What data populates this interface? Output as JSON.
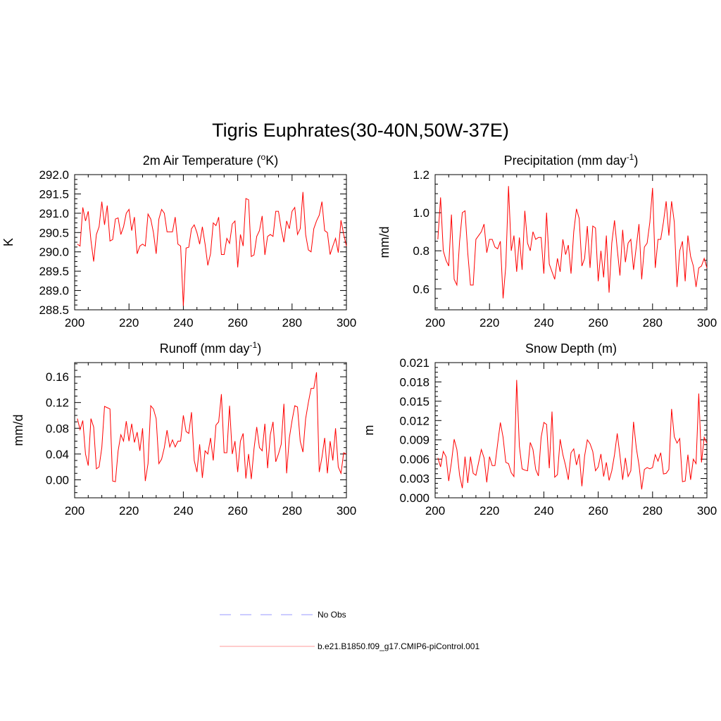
{
  "figure_title": "Tigris Euphrates(30-40N,50W-37E)",
  "legend": [
    {
      "label": "No Obs",
      "color": "#9999ff",
      "style": "dashed"
    },
    {
      "label": "b.e21.B1850.f09_g17.CMIP6-piControl.001",
      "color": "#ff9999",
      "style": "solid"
    }
  ],
  "colors": {
    "series": "#ff0000"
  },
  "chart_data": [
    {
      "id": "temp",
      "type": "line",
      "title": "2m Air Temperature (",
      "title_sup": "o",
      "title_after": "K)",
      "ylabel": "K",
      "xlim": [
        200,
        300
      ],
      "ylim": [
        288.5,
        292.0
      ],
      "xticks": [
        200,
        220,
        240,
        260,
        280,
        300
      ],
      "xtick_labels": [
        "200",
        "220",
        "240",
        "260",
        "280",
        "300"
      ],
      "yticks": [
        288.5,
        289.0,
        289.5,
        290.0,
        290.5,
        291.0,
        291.5,
        292.0
      ],
      "ytick_labels": [
        "288.5",
        "289.0",
        "289.5",
        "290.0",
        "290.5",
        "291.0",
        "291.5",
        "292.0"
      ],
      "x_start": 201,
      "values": [
        290.2,
        290.15,
        291.15,
        290.8,
        291.05,
        290.3,
        289.75,
        290.45,
        290.65,
        291.3,
        290.7,
        291.2,
        290.28,
        290.32,
        290.85,
        290.88,
        290.45,
        290.65,
        291.0,
        291.1,
        290.55,
        290.9,
        289.95,
        290.15,
        290.2,
        290.15,
        290.98,
        290.85,
        290.5,
        289.95,
        290.85,
        291.1,
        291.0,
        290.52,
        290.52,
        290.52,
        290.9,
        290.2,
        290.15,
        288.6,
        290.1,
        290.12,
        290.6,
        290.7,
        290.5,
        290.2,
        290.65,
        290.2,
        289.65,
        289.95,
        290.75,
        290.68,
        290.9,
        289.93,
        289.93,
        290.35,
        290.22,
        290.72,
        290.8,
        289.6,
        290.45,
        290.15,
        291.38,
        291.35,
        289.88,
        289.92,
        290.4,
        290.55,
        290.93,
        289.92,
        290.4,
        290.45,
        290.4,
        291.05,
        291.05,
        290.6,
        290.25,
        290.8,
        290.6,
        291.05,
        291.15,
        290.45,
        290.6,
        291.55,
        290.45,
        290.05,
        290.0,
        290.6,
        290.8,
        290.95,
        291.3,
        290.55,
        290.5,
        289.93,
        290.15,
        290.35,
        289.98,
        290.82,
        290.45,
        290.15
      ]
    },
    {
      "id": "precip",
      "type": "line",
      "title": "Precipitation (mm day",
      "title_sup": "-1",
      "title_after": ")",
      "ylabel": "mm/d",
      "xlim": [
        200,
        300
      ],
      "ylim": [
        0.49,
        1.2
      ],
      "xticks": [
        200,
        220,
        240,
        260,
        280,
        300
      ],
      "xtick_labels": [
        "200",
        "220",
        "240",
        "260",
        "280",
        "300"
      ],
      "yticks": [
        0.6,
        0.8,
        1.0,
        1.2
      ],
      "ytick_labels": [
        "0.6",
        "0.8",
        "1.0",
        "1.2"
      ],
      "x_start": 201,
      "values": [
        0.86,
        1.08,
        0.8,
        0.75,
        0.72,
        0.99,
        0.65,
        0.62,
        0.85,
        1.0,
        1.01,
        0.79,
        0.62,
        0.62,
        0.86,
        0.88,
        0.9,
        0.94,
        0.79,
        0.86,
        0.86,
        0.82,
        0.81,
        0.85,
        0.55,
        0.72,
        1.14,
        0.8,
        0.88,
        0.69,
        0.87,
        0.7,
        1.01,
        0.84,
        0.8,
        0.9,
        0.86,
        0.87,
        0.87,
        0.68,
        1.0,
        0.73,
        0.69,
        0.65,
        0.76,
        0.69,
        0.86,
        0.78,
        0.83,
        0.68,
        0.9,
        1.02,
        0.97,
        0.72,
        0.76,
        0.93,
        0.71,
        0.93,
        0.92,
        0.64,
        0.8,
        0.66,
        0.88,
        0.58,
        0.84,
        0.96,
        0.81,
        0.67,
        0.91,
        0.74,
        0.84,
        0.86,
        0.7,
        0.82,
        0.94,
        0.65,
        0.82,
        0.84,
        0.95,
        1.13,
        0.71,
        0.86,
        0.86,
        0.95,
        1.06,
        0.88,
        1.06,
        0.95,
        0.61,
        0.8,
        0.85,
        0.64,
        0.88,
        0.77,
        0.72,
        0.61,
        0.71,
        0.72,
        0.76,
        0.71
      ]
    },
    {
      "id": "runoff",
      "type": "line",
      "title": "Runoff (mm day",
      "title_sup": "-1",
      "title_after": ")",
      "ylabel": "mm/d",
      "xlim": [
        200,
        300
      ],
      "ylim": [
        -0.028,
        0.182
      ],
      "xticks": [
        200,
        220,
        240,
        260,
        280,
        300
      ],
      "xtick_labels": [
        "200",
        "220",
        "240",
        "260",
        "280",
        "300"
      ],
      "yticks": [
        0.0,
        0.04,
        0.08,
        0.12,
        0.16
      ],
      "ytick_labels": [
        "0.00",
        "0.04",
        "0.08",
        "0.12",
        "0.16"
      ],
      "x_start": 201,
      "values": [
        0.095,
        0.078,
        0.092,
        0.04,
        0.022,
        0.095,
        0.082,
        0.017,
        0.02,
        0.05,
        0.114,
        0.112,
        0.11,
        -0.002,
        -0.003,
        0.045,
        0.07,
        0.06,
        0.091,
        0.06,
        0.087,
        0.058,
        0.074,
        0.045,
        0.08,
        -0.002,
        0.025,
        0.115,
        0.11,
        0.095,
        0.025,
        0.032,
        0.05,
        0.077,
        0.051,
        0.062,
        0.051,
        0.06,
        0.06,
        0.1,
        0.075,
        0.072,
        0.105,
        0.03,
        0.012,
        0.055,
        0.003,
        0.045,
        0.04,
        0.065,
        0.03,
        0.085,
        0.09,
        0.133,
        0.042,
        0.042,
        0.115,
        0.04,
        0.06,
        0.012,
        0.06,
        0.072,
        0.002,
        0.04,
        0.001,
        0.048,
        0.082,
        0.05,
        0.045,
        0.087,
        0.018,
        0.07,
        0.09,
        0.028,
        0.04,
        0.055,
        0.118,
        0.01,
        0.065,
        0.092,
        0.115,
        0.113,
        0.06,
        0.043,
        0.095,
        0.12,
        0.142,
        0.142,
        0.167,
        0.012,
        0.035,
        0.065,
        0.01,
        0.06,
        0.03,
        0.08,
        0.02,
        0.01,
        0.042,
        0.04
      ]
    },
    {
      "id": "snow",
      "type": "line",
      "title": "Snow Depth (m)",
      "title_sup": "",
      "title_after": "",
      "ylabel": "m",
      "xlim": [
        200,
        300
      ],
      "ylim": [
        0.0,
        0.021
      ],
      "xticks": [
        200,
        220,
        240,
        260,
        280,
        300
      ],
      "xtick_labels": [
        "200",
        "220",
        "240",
        "260",
        "280",
        "300"
      ],
      "yticks": [
        0.0,
        0.003,
        0.006,
        0.009,
        0.012,
        0.015,
        0.018,
        0.021
      ],
      "ytick_labels": [
        "0.000",
        "0.003",
        "0.006",
        "0.009",
        "0.012",
        "0.015",
        "0.018",
        "0.021"
      ],
      "x_start": 201,
      "values": [
        0.0062,
        0.0048,
        0.0072,
        0.0064,
        0.0026,
        0.0055,
        0.0091,
        0.0075,
        0.0035,
        0.0015,
        0.0064,
        0.0023,
        0.0064,
        0.0038,
        0.0035,
        0.0055,
        0.0075,
        0.0062,
        0.0024,
        0.0064,
        0.005,
        0.005,
        0.0084,
        0.0117,
        0.0094,
        0.0055,
        0.0053,
        0.0039,
        0.0033,
        0.0183,
        0.008,
        0.0045,
        0.0043,
        0.0042,
        0.0086,
        0.0075,
        0.0044,
        0.0034,
        0.0094,
        0.0117,
        0.0114,
        0.0046,
        0.0134,
        0.0032,
        0.0036,
        0.0091,
        0.0067,
        0.005,
        0.0028,
        0.007,
        0.0076,
        0.0051,
        0.0068,
        0.0018,
        0.0065,
        0.009,
        0.0084,
        0.0072,
        0.0042,
        0.0048,
        0.0068,
        0.0033,
        0.0055,
        0.0027,
        0.0042,
        0.0067,
        0.01,
        0.0066,
        0.0028,
        0.0062,
        0.0033,
        0.0042,
        0.0118,
        0.0078,
        0.0051,
        0.0013,
        0.0044,
        0.0047,
        0.0045,
        0.0047,
        0.0067,
        0.0057,
        0.007,
        0.0037,
        0.0038,
        0.0044,
        0.0138,
        0.0095,
        0.0085,
        0.0092,
        0.0025,
        0.0026,
        0.0067,
        0.0028,
        0.006,
        0.0053,
        0.0162,
        0.0055,
        0.0094,
        0.0085
      ]
    }
  ]
}
